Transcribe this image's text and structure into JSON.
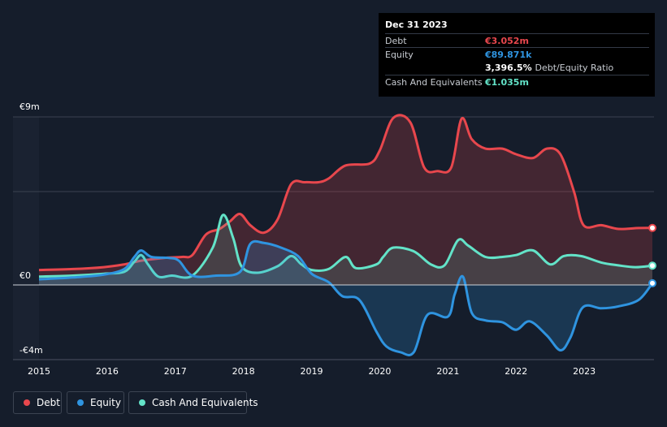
{
  "colors": {
    "debt": "#e8474d",
    "equity": "#2f94e0",
    "cash": "#63e3c8",
    "background": "#151d2b",
    "grid": "#3a4150"
  },
  "tooltip": {
    "date": "Dec 31 2023",
    "rows": {
      "debt": {
        "label": "Debt",
        "value": "€3.052m"
      },
      "equity": {
        "label": "Equity",
        "value": "€89.871k"
      },
      "ratio": {
        "value": "3,396.5%",
        "label": "Debt/Equity Ratio"
      },
      "cash": {
        "label": "Cash And Equivalents",
        "value": "€1.035m"
      }
    }
  },
  "legend": {
    "debt": "Debt",
    "equity": "Equity",
    "cash": "Cash And Equivalents"
  },
  "chart_data": {
    "type": "area",
    "y_tick_labels": [
      "€9m",
      "€0",
      "-€4m"
    ],
    "ylim": [
      -4,
      9
    ],
    "x_tick_labels": [
      "2015",
      "2016",
      "2017",
      "2018",
      "2019",
      "2020",
      "2021",
      "2022",
      "2023"
    ],
    "x_ticks": [
      2015,
      2016,
      2017,
      2018,
      2019,
      2020,
      2021,
      2022,
      2023
    ],
    "xlim": [
      2015,
      2024
    ],
    "series": [
      {
        "key": "debt",
        "name": "Debt",
        "points": [
          [
            2015.0,
            0.8
          ],
          [
            2015.5,
            0.85
          ],
          [
            2015.95,
            0.95
          ],
          [
            2016.25,
            1.1
          ],
          [
            2016.5,
            1.3
          ],
          [
            2016.85,
            1.45
          ],
          [
            2017.1,
            1.5
          ],
          [
            2017.25,
            1.6
          ],
          [
            2017.45,
            2.7
          ],
          [
            2017.65,
            3.0
          ],
          [
            2017.8,
            3.4
          ],
          [
            2017.95,
            3.8
          ],
          [
            2018.1,
            3.2
          ],
          [
            2018.3,
            2.8
          ],
          [
            2018.5,
            3.5
          ],
          [
            2018.7,
            5.4
          ],
          [
            2018.9,
            5.5
          ],
          [
            2019.1,
            5.5
          ],
          [
            2019.25,
            5.7
          ],
          [
            2019.5,
            6.4
          ],
          [
            2019.85,
            6.5
          ],
          [
            2020.0,
            7.2
          ],
          [
            2020.2,
            8.95
          ],
          [
            2020.45,
            8.7
          ],
          [
            2020.65,
            6.3
          ],
          [
            2020.85,
            6.1
          ],
          [
            2021.05,
            6.3
          ],
          [
            2021.2,
            8.9
          ],
          [
            2021.35,
            7.8
          ],
          [
            2021.55,
            7.3
          ],
          [
            2021.8,
            7.3
          ],
          [
            2022.0,
            7.0
          ],
          [
            2022.25,
            6.8
          ],
          [
            2022.45,
            7.3
          ],
          [
            2022.65,
            7.0
          ],
          [
            2022.85,
            5.0
          ],
          [
            2022.99,
            3.2
          ],
          [
            2023.25,
            3.2
          ],
          [
            2023.5,
            3.0
          ],
          [
            2023.8,
            3.05
          ],
          [
            2024.0,
            3.052
          ]
        ]
      },
      {
        "key": "cash",
        "name": "Cash And Equivalents",
        "points": [
          [
            2015.0,
            0.45
          ],
          [
            2015.5,
            0.5
          ],
          [
            2015.95,
            0.6
          ],
          [
            2016.25,
            0.7
          ],
          [
            2016.4,
            1.25
          ],
          [
            2016.5,
            1.6
          ],
          [
            2016.6,
            1.1
          ],
          [
            2016.75,
            0.45
          ],
          [
            2016.95,
            0.5
          ],
          [
            2017.25,
            0.5
          ],
          [
            2017.55,
            2.0
          ],
          [
            2017.7,
            3.75
          ],
          [
            2017.85,
            2.5
          ],
          [
            2017.97,
            1.0
          ],
          [
            2018.2,
            0.65
          ],
          [
            2018.5,
            1.0
          ],
          [
            2018.7,
            1.55
          ],
          [
            2018.85,
            1.1
          ],
          [
            2019.0,
            0.8
          ],
          [
            2019.25,
            0.85
          ],
          [
            2019.5,
            1.5
          ],
          [
            2019.65,
            0.9
          ],
          [
            2019.95,
            1.1
          ],
          [
            2020.05,
            1.5
          ],
          [
            2020.2,
            2.0
          ],
          [
            2020.5,
            1.8
          ],
          [
            2020.75,
            1.1
          ],
          [
            2020.95,
            1.05
          ],
          [
            2021.15,
            2.4
          ],
          [
            2021.3,
            2.1
          ],
          [
            2021.55,
            1.5
          ],
          [
            2021.8,
            1.5
          ],
          [
            2022.0,
            1.6
          ],
          [
            2022.25,
            1.85
          ],
          [
            2022.5,
            1.1
          ],
          [
            2022.7,
            1.55
          ],
          [
            2022.95,
            1.55
          ],
          [
            2023.25,
            1.2
          ],
          [
            2023.5,
            1.05
          ],
          [
            2023.75,
            0.95
          ],
          [
            2024.0,
            1.035
          ]
        ]
      },
      {
        "key": "equity",
        "name": "Equity",
        "points": [
          [
            2015.0,
            0.3
          ],
          [
            2015.5,
            0.4
          ],
          [
            2015.95,
            0.55
          ],
          [
            2016.25,
            0.85
          ],
          [
            2016.4,
            1.5
          ],
          [
            2016.5,
            1.85
          ],
          [
            2016.65,
            1.5
          ],
          [
            2016.9,
            1.45
          ],
          [
            2017.05,
            1.3
          ],
          [
            2017.25,
            0.5
          ],
          [
            2017.6,
            0.5
          ],
          [
            2017.95,
            0.7
          ],
          [
            2018.1,
            2.2
          ],
          [
            2018.3,
            2.25
          ],
          [
            2018.55,
            2.0
          ],
          [
            2018.8,
            1.55
          ],
          [
            2019.0,
            0.6
          ],
          [
            2019.25,
            0.15
          ],
          [
            2019.45,
            -0.6
          ],
          [
            2019.7,
            -0.8
          ],
          [
            2019.95,
            -2.5
          ],
          [
            2020.1,
            -3.3
          ],
          [
            2020.3,
            -3.6
          ],
          [
            2020.5,
            -3.6
          ],
          [
            2020.7,
            -1.6
          ],
          [
            2021.0,
            -1.7
          ],
          [
            2021.1,
            -0.5
          ],
          [
            2021.22,
            0.45
          ],
          [
            2021.35,
            -1.5
          ],
          [
            2021.55,
            -1.9
          ],
          [
            2021.8,
            -2.0
          ],
          [
            2022.0,
            -2.4
          ],
          [
            2022.2,
            -1.95
          ],
          [
            2022.45,
            -2.7
          ],
          [
            2022.65,
            -3.5
          ],
          [
            2022.8,
            -2.8
          ],
          [
            2022.98,
            -1.2
          ],
          [
            2023.25,
            -1.25
          ],
          [
            2023.5,
            -1.15
          ],
          [
            2023.8,
            -0.8
          ],
          [
            2024.0,
            0.09
          ]
        ]
      }
    ]
  }
}
